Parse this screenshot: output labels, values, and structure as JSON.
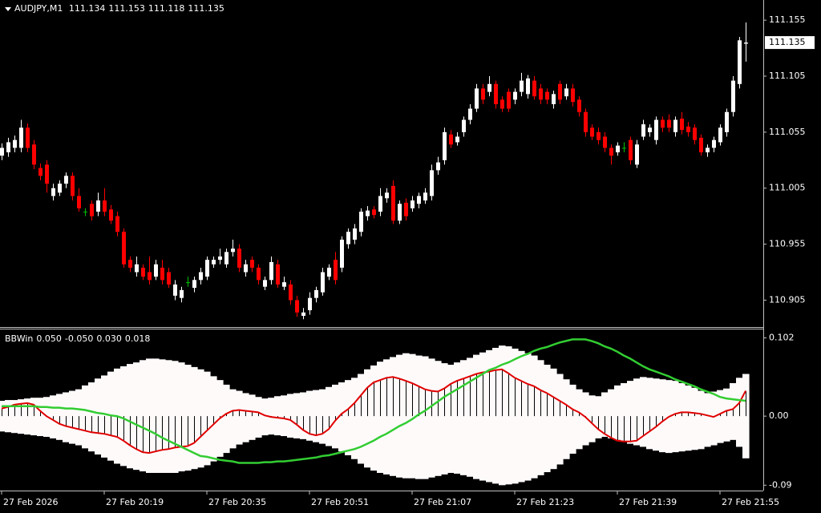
{
  "chart_data": [
    {
      "type": "candlestick",
      "symbol": "AUDJPY,M1",
      "open": [
        111.034,
        111.037,
        111.041,
        111.041,
        111.059,
        111.044,
        111.023,
        111.026,
        110.998,
        111.001,
        111.009,
        111.016,
        110.998,
        110.984,
        110.991,
        110.984,
        110.994,
        110.986,
        110.98,
        110.966,
        110.941,
        110.93,
        110.934,
        110.93,
        110.926,
        110.934,
        110.93,
        110.909,
        110.907,
        110.921,
        110.916,
        110.923,
        110.926,
        110.937,
        110.941,
        110.937,
        110.948,
        110.951,
        110.93,
        110.941,
        110.934,
        110.917,
        110.923,
        110.937,
        110.917,
        110.919,
        110.905,
        110.891,
        110.896,
        110.907,
        110.912,
        110.926,
        110.941,
        110.934,
        110.955,
        110.959,
        110.966,
        110.98,
        110.986,
        110.984,
        110.996,
        111.007,
        110.976,
        110.992,
        110.987,
        110.991,
        110.994,
        110.998,
        111.021,
        111.03,
        111.053,
        111.046,
        111.055,
        111.066,
        111.076,
        111.094,
        111.091,
        111.098,
        111.084,
        111.091,
        111.084,
        111.091,
        111.089,
        111.101,
        111.094,
        111.091,
        111.08,
        111.098,
        111.087,
        111.094,
        111.084,
        111.073,
        111.059,
        111.055,
        111.051,
        111.041,
        111.037,
        111.041,
        111.048,
        111.026,
        111.051,
        111.055,
        111.048,
        111.066,
        111.066,
        111.055,
        111.067,
        111.06,
        111.059,
        111.05,
        111.037,
        111.041,
        111.046,
        111.055,
        111.073,
        111.098,
        111.134
      ],
      "high": [
        111.045,
        111.05,
        111.052,
        111.066,
        111.063,
        111.048,
        111.027,
        111.03,
        111.009,
        111.012,
        111.019,
        111.019,
        111.005,
        110.987,
        110.994,
        111.001,
        111.005,
        110.99,
        110.984,
        110.969,
        110.944,
        110.944,
        110.937,
        110.944,
        110.941,
        110.941,
        110.934,
        110.923,
        110.917,
        110.926,
        110.926,
        110.934,
        110.944,
        110.944,
        110.951,
        110.951,
        110.959,
        110.955,
        110.941,
        110.944,
        110.937,
        110.926,
        110.944,
        110.941,
        110.926,
        110.923,
        110.909,
        110.898,
        110.912,
        110.917,
        110.934,
        110.937,
        110.948,
        110.962,
        110.969,
        110.973,
        110.987,
        110.989,
        110.989,
        111.005,
        111.005,
        111.012,
        110.994,
        110.996,
        110.998,
        111.001,
        111.005,
        111.026,
        111.033,
        111.059,
        111.057,
        111.055,
        111.069,
        111.08,
        111.098,
        111.098,
        111.105,
        111.101,
        111.087,
        111.094,
        111.094,
        111.108,
        111.106,
        111.105,
        111.098,
        111.094,
        111.092,
        111.101,
        111.098,
        111.098,
        111.087,
        111.076,
        111.062,
        111.059,
        111.055,
        111.044,
        111.046,
        111.046,
        111.051,
        111.048,
        111.066,
        111.062,
        111.069,
        111.069,
        111.071,
        111.069,
        111.073,
        111.064,
        111.062,
        111.053,
        111.044,
        111.051,
        111.062,
        111.076,
        111.105,
        111.14,
        111.153
      ],
      "low": [
        111.03,
        111.033,
        111.037,
        111.037,
        111.037,
        111.022,
        111.012,
        111.001,
        110.994,
        110.998,
        111.005,
        110.994,
        110.984,
        110.98,
        110.976,
        110.98,
        110.98,
        110.973,
        110.962,
        110.934,
        110.93,
        110.926,
        110.923,
        110.919,
        110.923,
        110.919,
        110.916,
        110.905,
        110.903,
        110.917,
        110.912,
        110.919,
        110.923,
        110.934,
        110.937,
        110.934,
        110.944,
        110.93,
        110.926,
        110.93,
        110.919,
        110.914,
        110.919,
        110.916,
        110.914,
        110.901,
        110.89,
        110.888,
        110.892,
        110.903,
        110.909,
        110.923,
        110.919,
        110.93,
        110.951,
        110.955,
        110.962,
        110.976,
        110.978,
        110.98,
        110.992,
        110.973,
        110.973,
        110.976,
        110.984,
        110.987,
        110.991,
        110.994,
        111.017,
        111.026,
        111.041,
        111.043,
        111.051,
        111.062,
        111.073,
        111.08,
        111.087,
        111.076,
        111.073,
        111.073,
        111.08,
        111.087,
        111.085,
        111.084,
        111.08,
        111.08,
        111.076,
        111.08,
        111.084,
        111.078,
        111.069,
        111.051,
        111.048,
        111.044,
        111.037,
        111.026,
        111.034,
        111.037,
        111.026,
        111.023,
        111.048,
        111.051,
        111.044,
        111.055,
        111.055,
        111.051,
        111.053,
        111.051,
        111.044,
        111.034,
        111.033,
        111.037,
        111.043,
        111.051,
        111.069,
        111.094,
        111.118
      ],
      "close": [
        111.041,
        111.046,
        111.048,
        111.059,
        111.041,
        111.026,
        111.016,
        111.009,
        111.005,
        111.009,
        111.016,
        110.998,
        110.987,
        110.984,
        110.98,
        110.994,
        110.984,
        110.976,
        110.966,
        110.937,
        110.934,
        110.937,
        110.926,
        110.923,
        110.937,
        110.923,
        110.919,
        110.919,
        110.914,
        110.921,
        110.923,
        110.93,
        110.941,
        110.941,
        110.944,
        110.948,
        110.951,
        110.934,
        110.937,
        110.934,
        110.923,
        110.923,
        110.939,
        110.919,
        110.921,
        110.905,
        110.894,
        110.894,
        110.907,
        110.914,
        110.93,
        110.934,
        110.923,
        110.959,
        110.966,
        110.969,
        110.984,
        110.985,
        110.981,
        110.998,
        111.001,
        110.976,
        110.991,
        110.98,
        110.994,
        110.998,
        111.001,
        111.021,
        111.028,
        111.055,
        111.044,
        111.051,
        111.066,
        111.076,
        111.094,
        111.084,
        111.098,
        111.08,
        111.076,
        111.076,
        111.091,
        111.101,
        111.103,
        111.087,
        111.084,
        111.084,
        111.089,
        111.084,
        111.094,
        111.082,
        111.073,
        111.055,
        111.051,
        111.048,
        111.041,
        111.034,
        111.043,
        111.041,
        111.03,
        111.044,
        111.062,
        111.059,
        111.066,
        111.059,
        111.059,
        111.066,
        111.057,
        111.055,
        111.048,
        111.037,
        111.041,
        111.048,
        111.059,
        111.073,
        111.101,
        111.137,
        111.135
      ],
      "up_color": "#ffffff",
      "down_color": "#ff0000",
      "doji_color": "#00c000",
      "ylim": [
        110.881,
        111.173
      ],
      "yticks": [
        111.155,
        111.105,
        111.055,
        111.005,
        110.955,
        110.905
      ],
      "xlim": [
        -0.25,
        118.75
      ],
      "xticks": [
        {
          "value": 0,
          "label": "27 Feb 2026"
        },
        {
          "value": 16,
          "label": "27 Feb 20:19"
        },
        {
          "value": 32,
          "label": "27 Feb 20:35"
        },
        {
          "value": 48,
          "label": "27 Feb 20:51"
        },
        {
          "value": 64,
          "label": "27 Feb 21:07"
        },
        {
          "value": 80,
          "label": "27 Feb 21:23"
        },
        {
          "value": 96,
          "label": "27 Feb 21:39"
        },
        {
          "value": 112,
          "label": "27 Feb 21:55"
        }
      ]
    },
    {
      "type": "indicator",
      "name": "BBWin",
      "readouts": [
        {
          "value": 0.05,
          "label": "0.050"
        },
        {
          "value": -0.05,
          "label": "-0.050"
        },
        {
          "value": 0.03,
          "label": "0.030"
        },
        {
          "value": 0.018,
          "label": "0.018"
        }
      ],
      "band": {
        "color": "#fffafa",
        "upper": [
          0.02,
          0.021,
          0.021,
          0.022,
          0.023,
          0.024,
          0.024,
          0.025,
          0.027,
          0.029,
          0.031,
          0.033,
          0.035,
          0.04,
          0.044,
          0.049,
          0.053,
          0.058,
          0.062,
          0.065,
          0.068,
          0.07,
          0.073,
          0.075,
          0.075,
          0.074,
          0.073,
          0.072,
          0.07,
          0.067,
          0.064,
          0.061,
          0.058,
          0.052,
          0.047,
          0.041,
          0.035,
          0.033,
          0.03,
          0.028,
          0.025,
          0.023,
          0.024,
          0.026,
          0.027,
          0.029,
          0.03,
          0.031,
          0.033,
          0.034,
          0.035,
          0.038,
          0.041,
          0.044,
          0.047,
          0.05,
          0.055,
          0.061,
          0.066,
          0.071,
          0.074,
          0.077,
          0.08,
          0.082,
          0.081,
          0.079,
          0.078,
          0.075,
          0.072,
          0.069,
          0.067,
          0.07,
          0.073,
          0.076,
          0.08,
          0.083,
          0.086,
          0.089,
          0.092,
          0.091,
          0.088,
          0.085,
          0.082,
          0.079,
          0.073,
          0.067,
          0.062,
          0.055,
          0.048,
          0.041,
          0.035,
          0.031,
          0.027,
          0.026,
          0.031,
          0.035,
          0.04,
          0.043,
          0.046,
          0.049,
          0.051,
          0.05,
          0.049,
          0.048,
          0.047,
          0.046,
          0.043,
          0.04,
          0.037,
          0.033,
          0.03,
          0.032,
          0.034,
          0.036,
          0.043,
          0.05,
          0.055
        ],
        "lower": [
          -0.02,
          -0.021,
          -0.022,
          -0.023,
          -0.024,
          -0.025,
          -0.026,
          -0.027,
          -0.029,
          -0.031,
          -0.034,
          -0.036,
          -0.038,
          -0.042,
          -0.046,
          -0.05,
          -0.054,
          -0.058,
          -0.062,
          -0.065,
          -0.068,
          -0.07,
          -0.072,
          -0.074,
          -0.074,
          -0.074,
          -0.074,
          -0.074,
          -0.072,
          -0.071,
          -0.069,
          -0.067,
          -0.064,
          -0.059,
          -0.053,
          -0.048,
          -0.042,
          -0.037,
          -0.034,
          -0.031,
          -0.028,
          -0.025,
          -0.024,
          -0.025,
          -0.026,
          -0.028,
          -0.029,
          -0.03,
          -0.032,
          -0.034,
          -0.036,
          -0.039,
          -0.042,
          -0.046,
          -0.051,
          -0.056,
          -0.062,
          -0.067,
          -0.071,
          -0.074,
          -0.076,
          -0.078,
          -0.08,
          -0.081,
          -0.081,
          -0.082,
          -0.082,
          -0.08,
          -0.078,
          -0.076,
          -0.074,
          -0.075,
          -0.077,
          -0.079,
          -0.082,
          -0.084,
          -0.086,
          -0.088,
          -0.09,
          -0.089,
          -0.088,
          -0.086,
          -0.084,
          -0.081,
          -0.077,
          -0.073,
          -0.069,
          -0.063,
          -0.056,
          -0.049,
          -0.043,
          -0.038,
          -0.034,
          -0.029,
          -0.027,
          -0.029,
          -0.031,
          -0.033,
          -0.036,
          -0.038,
          -0.04,
          -0.043,
          -0.045,
          -0.047,
          -0.048,
          -0.047,
          -0.046,
          -0.045,
          -0.044,
          -0.043,
          -0.04,
          -0.038,
          -0.035,
          -0.033,
          -0.031,
          -0.04,
          -0.055
        ]
      },
      "histogram": {
        "color": "#ffffff",
        "line_color": "#e00000",
        "values": [
          0.01,
          0.012,
          0.015,
          0.016,
          0.017,
          0.015,
          0.007,
          0.0,
          -0.005,
          -0.01,
          -0.013,
          -0.015,
          -0.017,
          -0.019,
          -0.021,
          -0.022,
          -0.023,
          -0.025,
          -0.027,
          -0.032,
          -0.038,
          -0.043,
          -0.047,
          -0.048,
          -0.046,
          -0.044,
          -0.043,
          -0.041,
          -0.04,
          -0.039,
          -0.035,
          -0.027,
          -0.019,
          -0.011,
          -0.003,
          0.003,
          0.007,
          0.008,
          0.007,
          0.006,
          0.005,
          0.001,
          -0.001,
          -0.002,
          -0.003,
          -0.005,
          -0.011,
          -0.018,
          -0.023,
          -0.025,
          -0.023,
          -0.017,
          -0.006,
          0.003,
          0.009,
          0.017,
          0.027,
          0.037,
          0.044,
          0.047,
          0.05,
          0.051,
          0.049,
          0.046,
          0.043,
          0.039,
          0.035,
          0.033,
          0.032,
          0.036,
          0.042,
          0.046,
          0.049,
          0.052,
          0.055,
          0.057,
          0.058,
          0.06,
          0.061,
          0.056,
          0.05,
          0.046,
          0.042,
          0.039,
          0.034,
          0.03,
          0.025,
          0.02,
          0.015,
          0.009,
          0.005,
          -0.001,
          -0.009,
          -0.017,
          -0.023,
          -0.028,
          -0.032,
          -0.033,
          -0.033,
          -0.032,
          -0.026,
          -0.02,
          -0.014,
          -0.007,
          -0.001,
          0.003,
          0.005,
          0.005,
          0.004,
          0.003,
          0.001,
          -0.001,
          0.003,
          0.007,
          0.009,
          0.017,
          0.033
        ]
      },
      "signal": {
        "color": "#32cd32",
        "values": [
          0.013,
          0.013,
          0.013,
          0.013,
          0.013,
          0.013,
          0.012,
          0.012,
          0.011,
          0.011,
          0.01,
          0.01,
          0.009,
          0.008,
          0.006,
          0.004,
          0.003,
          0.001,
          0.0,
          -0.003,
          -0.007,
          -0.011,
          -0.015,
          -0.019,
          -0.023,
          -0.028,
          -0.032,
          -0.036,
          -0.04,
          -0.044,
          -0.048,
          -0.052,
          -0.053,
          -0.055,
          -0.057,
          -0.058,
          -0.059,
          -0.061,
          -0.061,
          -0.061,
          -0.061,
          -0.06,
          -0.06,
          -0.059,
          -0.059,
          -0.058,
          -0.057,
          -0.056,
          -0.055,
          -0.054,
          -0.052,
          -0.051,
          -0.049,
          -0.047,
          -0.045,
          -0.043,
          -0.04,
          -0.036,
          -0.032,
          -0.027,
          -0.023,
          -0.018,
          -0.013,
          -0.009,
          -0.004,
          0.002,
          0.007,
          0.013,
          0.019,
          0.025,
          0.03,
          0.035,
          0.04,
          0.045,
          0.05,
          0.055,
          0.06,
          0.063,
          0.067,
          0.07,
          0.074,
          0.078,
          0.081,
          0.085,
          0.088,
          0.09,
          0.093,
          0.096,
          0.098,
          0.1,
          0.1,
          0.1,
          0.098,
          0.095,
          0.091,
          0.088,
          0.084,
          0.079,
          0.075,
          0.07,
          0.065,
          0.061,
          0.058,
          0.055,
          0.052,
          0.048,
          0.045,
          0.042,
          0.039,
          0.035,
          0.032,
          0.029,
          0.025,
          0.023,
          0.022,
          0.021,
          0.02
        ]
      },
      "ylim": [
        -0.097,
        0.113
      ],
      "yticks": [
        0.102,
        {
          "value": 0,
          "label": "0.00"
        },
        -0.09
      ]
    }
  ]
}
